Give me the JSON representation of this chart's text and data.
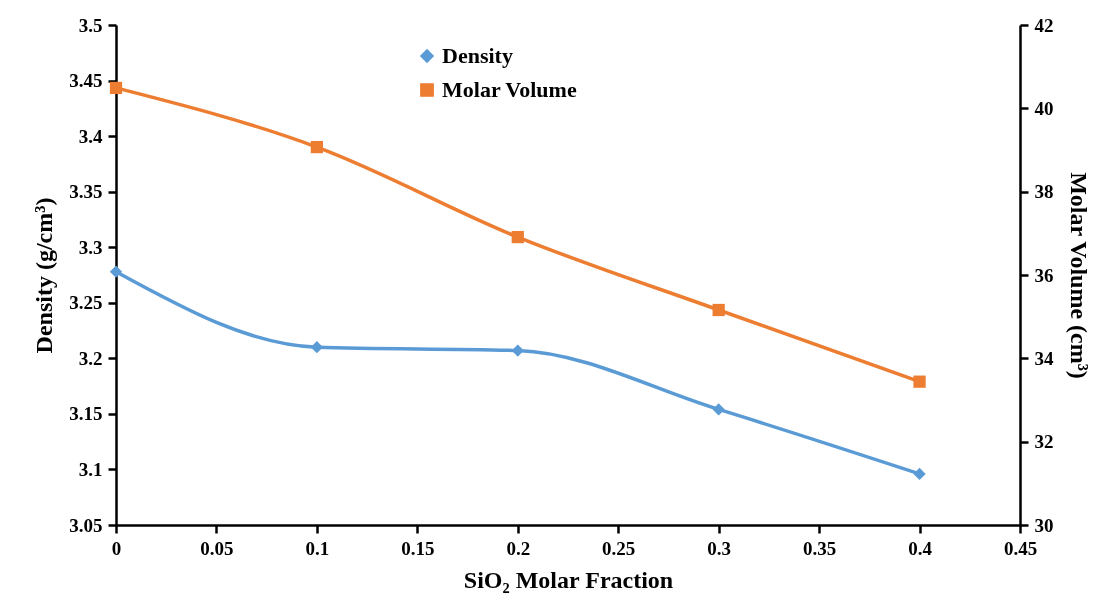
{
  "chart_data": {
    "type": "line",
    "xlabel": "SiO₂ Molar Fraction",
    "ylabel": "Density (g/cm³)",
    "y2label": "Molar Volume (cm³)",
    "x": [
      0,
      0.1,
      0.2,
      0.3,
      0.4
    ],
    "xlim": [
      0,
      0.45
    ],
    "xticks": [
      0,
      0.05,
      0.1,
      0.15,
      0.2,
      0.25,
      0.3,
      0.35,
      0.4,
      0.45
    ],
    "ylim": [
      3.05,
      3.5
    ],
    "yticks": [
      3.05,
      3.1,
      3.15,
      3.2,
      3.25,
      3.3,
      3.35,
      3.4,
      3.45,
      3.5
    ],
    "y2lim": [
      30,
      42
    ],
    "y2ticks": [
      30,
      32,
      34,
      36,
      38,
      40,
      42
    ],
    "grid": false,
    "legend": "top",
    "line_style": "solid",
    "series": [
      {
        "name": "Density",
        "color": "#5b9bd5",
        "marker": "diamond",
        "values": [
          3.278,
          3.21,
          3.207,
          3.154,
          3.096
        ]
      },
      {
        "name": "Molar Volume",
        "color": "#ed7d31",
        "marker": "square",
        "axis": "y2",
        "values": [
          40.49,
          39.07,
          36.91,
          35.16,
          33.44
        ]
      }
    ]
  }
}
